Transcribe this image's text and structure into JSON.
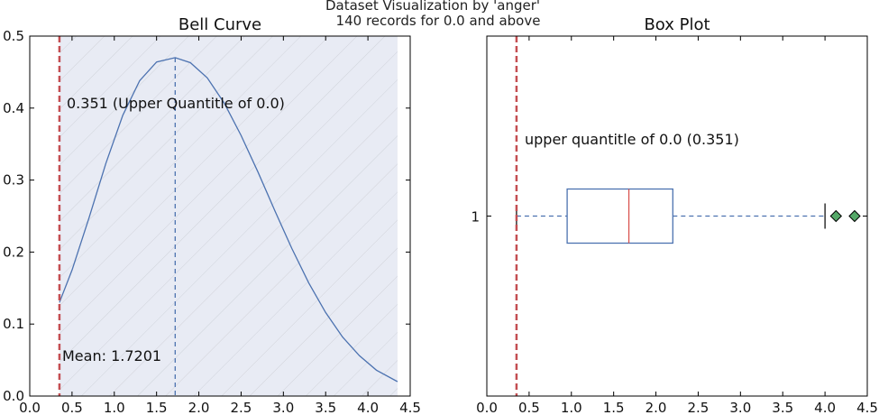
{
  "figure": {
    "suptitle_line1": "Dataset Visualization by 'anger'",
    "suptitle_line2": "140 records for 0.0 and above"
  },
  "chart_data": [
    {
      "type": "line",
      "title": "Bell Curve",
      "xlim": [
        0.0,
        4.5
      ],
      "ylim": [
        0.0,
        0.5
      ],
      "x_ticks": [
        "0.0",
        "0.5",
        "1.0",
        "1.5",
        "2.0",
        "2.5",
        "3.0",
        "3.5",
        "4.0",
        "4.5"
      ],
      "y_ticks": [
        "0.0",
        "0.1",
        "0.2",
        "0.3",
        "0.4",
        "0.5"
      ],
      "curve": {
        "x": [
          0.351,
          0.5,
          0.7,
          0.9,
          1.1,
          1.3,
          1.5,
          1.7201,
          1.9,
          2.1,
          2.3,
          2.5,
          2.7,
          2.9,
          3.1,
          3.3,
          3.5,
          3.7,
          3.9,
          4.1,
          4.35
        ],
        "y": [
          0.13,
          0.175,
          0.247,
          0.323,
          0.39,
          0.438,
          0.464,
          0.47,
          0.463,
          0.442,
          0.407,
          0.362,
          0.311,
          0.257,
          0.205,
          0.157,
          0.116,
          0.082,
          0.056,
          0.036,
          0.02
        ]
      },
      "shaded_region": [
        0.351,
        4.35
      ],
      "mean": 1.7201,
      "upper_quantile": 0.351,
      "annotations": {
        "quantile_label": "0.351 (Upper Quantitle of 0.0)",
        "mean_label": "Mean: 1.7201"
      }
    },
    {
      "type": "box",
      "title": "Box Plot",
      "xlim": [
        0.0,
        4.5
      ],
      "x_ticks": [
        "0.0",
        "0.5",
        "1.0",
        "1.5",
        "2.0",
        "2.5",
        "3.0",
        "3.5",
        "4.0",
        "4.5"
      ],
      "y_ticks": [
        "1"
      ],
      "box": {
        "whisker_low": 0.351,
        "q1": 0.95,
        "median": 1.68,
        "q3": 2.2,
        "whisker_high": 4.0,
        "outliers": [
          4.13,
          4.35
        ]
      },
      "upper_quantile": 0.351,
      "annotations": {
        "quantile_label": "upper quantitle of 0.0 (0.351)"
      }
    }
  ],
  "colors": {
    "curve": "#4c72b0",
    "box": "#4c72b0",
    "median": "#d9534f",
    "quantile_line": "#c44e52",
    "shade_fill": "#e8ebf4",
    "hatch": "#d0d3da",
    "outlier": "#55a868"
  }
}
